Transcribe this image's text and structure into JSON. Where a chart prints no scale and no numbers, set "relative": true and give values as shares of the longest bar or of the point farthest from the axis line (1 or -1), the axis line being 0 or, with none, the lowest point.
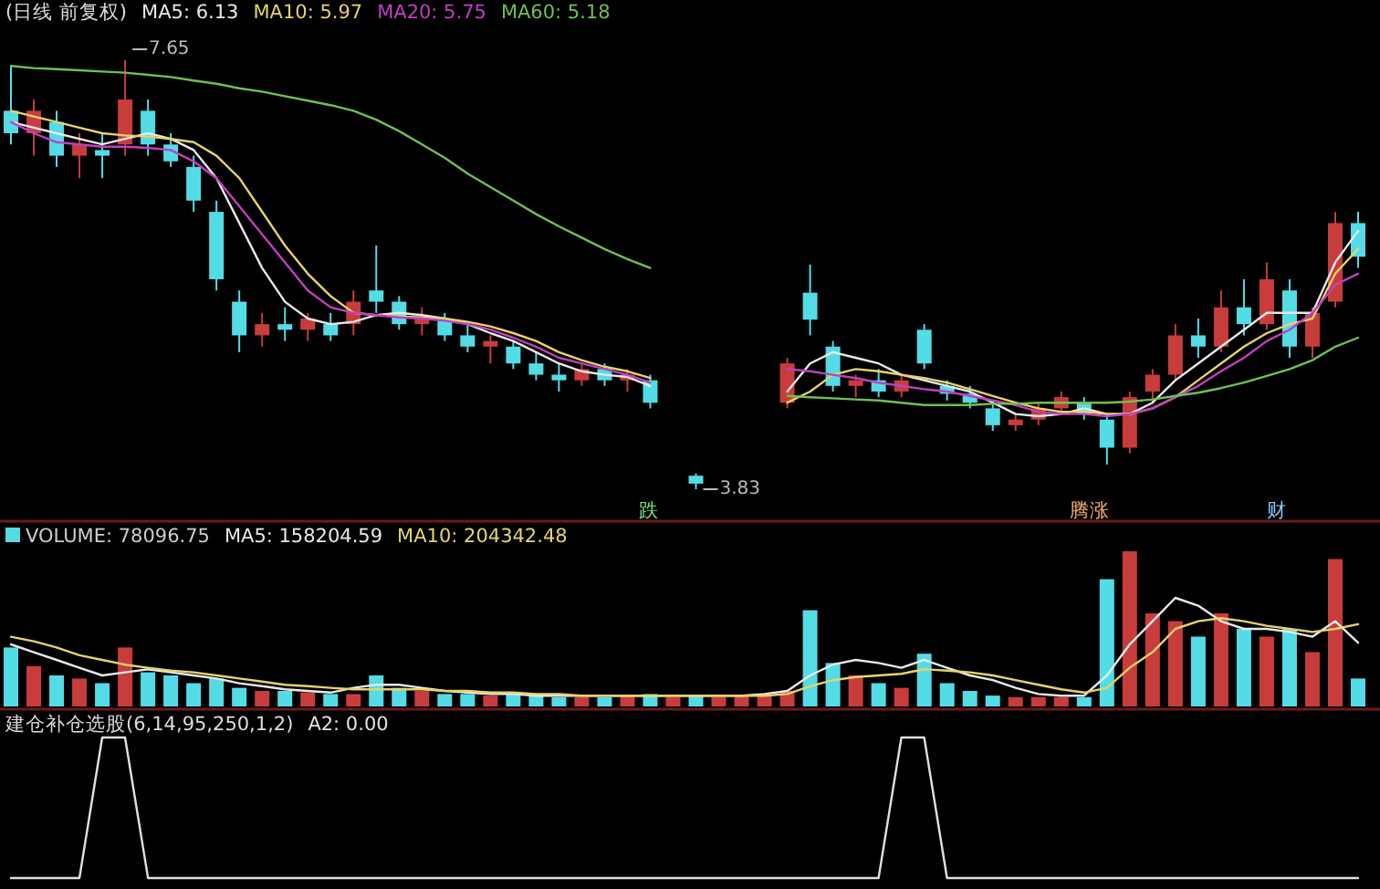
{
  "chart_data": [
    {
      "type": "candlestick",
      "title": "(日线 前复权)",
      "legend": "top left",
      "categories": [
        null,
        null,
        null,
        null,
        null,
        null,
        null,
        null,
        null,
        null,
        null,
        null,
        null,
        null,
        null,
        null,
        null,
        null,
        null,
        null,
        null,
        null,
        null,
        null,
        null,
        null,
        null,
        null,
        null,
        null,
        null,
        null,
        null,
        null,
        null,
        null,
        null,
        null,
        null,
        null,
        null,
        null,
        null,
        null,
        null,
        null,
        null,
        null,
        null,
        null,
        null,
        null,
        null,
        null,
        null,
        null,
        null,
        null,
        null,
        null
      ],
      "ohlc": [
        [
          7.2,
          7.6,
          6.9,
          7.0
        ],
        [
          7.0,
          7.3,
          6.8,
          7.2
        ],
        [
          7.1,
          7.2,
          6.7,
          6.8
        ],
        [
          6.8,
          7.0,
          6.6,
          6.9
        ],
        [
          6.85,
          7.0,
          6.6,
          6.8
        ],
        [
          6.9,
          7.65,
          6.8,
          7.3
        ],
        [
          7.2,
          7.3,
          6.8,
          6.9
        ],
        [
          6.9,
          7.0,
          6.7,
          6.75
        ],
        [
          6.7,
          6.8,
          6.3,
          6.4
        ],
        [
          6.3,
          6.4,
          5.6,
          5.7
        ],
        [
          5.5,
          5.6,
          5.05,
          5.2
        ],
        [
          5.2,
          5.4,
          5.1,
          5.3
        ],
        [
          5.3,
          5.45,
          5.15,
          5.25
        ],
        [
          5.25,
          5.4,
          5.15,
          5.35
        ],
        [
          5.3,
          5.4,
          5.15,
          5.2
        ],
        [
          5.3,
          5.6,
          5.2,
          5.5
        ],
        [
          5.6,
          6.0,
          5.4,
          5.5
        ],
        [
          5.5,
          5.55,
          5.25,
          5.3
        ],
        [
          5.3,
          5.45,
          5.2,
          5.35
        ],
        [
          5.35,
          5.4,
          5.15,
          5.2
        ],
        [
          5.2,
          5.3,
          5.05,
          5.1
        ],
        [
          5.1,
          5.2,
          4.95,
          5.15
        ],
        [
          5.1,
          5.15,
          4.9,
          4.95
        ],
        [
          4.95,
          5.05,
          4.8,
          4.85
        ],
        [
          4.85,
          4.95,
          4.7,
          4.8
        ],
        [
          4.8,
          4.95,
          4.75,
          4.9
        ],
        [
          4.9,
          4.95,
          4.75,
          4.8
        ],
        [
          4.8,
          4.9,
          4.7,
          4.85
        ],
        [
          4.8,
          4.85,
          4.55,
          4.6
        ],
        null,
        [
          3.95,
          3.97,
          3.83,
          3.88
        ],
        null,
        null,
        null,
        [
          4.6,
          5.0,
          4.55,
          4.95
        ],
        [
          5.58,
          5.83,
          5.2,
          5.34
        ],
        [
          5.1,
          5.15,
          4.7,
          4.75
        ],
        [
          4.75,
          4.85,
          4.65,
          4.8
        ],
        [
          4.8,
          4.9,
          4.65,
          4.7
        ],
        [
          4.7,
          4.85,
          4.65,
          4.8
        ],
        [
          5.25,
          5.3,
          4.9,
          4.95
        ],
        [
          4.75,
          4.8,
          4.62,
          4.68
        ],
        [
          4.68,
          4.75,
          4.55,
          4.6
        ],
        [
          4.55,
          4.6,
          4.35,
          4.4
        ],
        [
          4.4,
          4.5,
          4.35,
          4.45
        ],
        [
          4.45,
          4.6,
          4.4,
          4.55
        ],
        [
          4.55,
          4.7,
          4.5,
          4.65
        ],
        [
          4.6,
          4.65,
          4.45,
          4.5
        ],
        [
          4.45,
          4.5,
          4.05,
          4.2
        ],
        [
          4.2,
          4.7,
          4.15,
          4.65
        ],
        [
          4.7,
          4.9,
          4.6,
          4.85
        ],
        [
          4.85,
          5.3,
          4.8,
          5.2
        ],
        [
          5.2,
          5.35,
          5.0,
          5.1
        ],
        [
          5.1,
          5.6,
          5.05,
          5.45
        ],
        [
          5.45,
          5.7,
          5.2,
          5.3
        ],
        [
          5.3,
          5.85,
          5.25,
          5.7
        ],
        [
          5.6,
          5.7,
          5.0,
          5.1
        ],
        [
          5.1,
          5.45,
          5.0,
          5.4
        ],
        [
          5.5,
          6.3,
          5.45,
          6.2
        ],
        [
          6.2,
          6.3,
          5.8,
          5.9
        ]
      ],
      "colors": [
        "#54dce6",
        "#c83c3c",
        "#54dce6",
        "#c83c3c",
        "#54dce6",
        "#c83c3c",
        "#54dce6",
        "#54dce6",
        "#54dce6",
        "#54dce6",
        "#54dce6",
        "#c83c3c",
        "#54dce6",
        "#c83c3c",
        "#54dce6",
        "#c83c3c",
        "#54dce6",
        "#54dce6",
        "#c83c3c",
        "#54dce6",
        "#54dce6",
        "#c83c3c",
        "#54dce6",
        "#54dce6",
        "#54dce6",
        "#c83c3c",
        "#54dce6",
        "#c83c3c",
        "#54dce6",
        null,
        "#54dce6",
        null,
        null,
        null,
        "#c83c3c",
        "#54dce6",
        "#54dce6",
        "#c83c3c",
        "#54dce6",
        "#c83c3c",
        "#54dce6",
        "#54dce6",
        "#54dce6",
        "#54dce6",
        "#c83c3c",
        "#c83c3c",
        "#c83c3c",
        "#54dce6",
        "#54dce6",
        "#c83c3c",
        "#c83c3c",
        "#c83c3c",
        "#54dce6",
        "#c83c3c",
        "#54dce6",
        "#c83c3c",
        "#54dce6",
        "#c83c3c",
        "#c83c3c",
        "#54dce6"
      ],
      "series": [
        {
          "name": "MA5: 6.13",
          "type": "line",
          "color": "#e8e8e8",
          "values": [
            7.1,
            7.05,
            7.0,
            6.95,
            6.9,
            6.95,
            7.0,
            6.95,
            6.85,
            6.6,
            6.2,
            5.8,
            5.5,
            5.35,
            5.3,
            5.32,
            5.38,
            5.4,
            5.38,
            5.35,
            5.3,
            5.22,
            5.15,
            5.05,
            4.95,
            4.88,
            4.85,
            4.83,
            4.75,
            null,
            null,
            null,
            null,
            null,
            4.7,
            4.95,
            5.05,
            5.0,
            4.95,
            4.85,
            4.8,
            4.75,
            4.7,
            4.6,
            4.5,
            4.48,
            4.5,
            4.55,
            4.5,
            4.5,
            4.6,
            4.8,
            4.95,
            5.1,
            5.25,
            5.4,
            5.4,
            5.4,
            5.85,
            6.13
          ]
        },
        {
          "name": "MA10: 5.97",
          "type": "line",
          "color": "#e6d36a",
          "values": [
            7.2,
            7.15,
            7.1,
            7.05,
            7.0,
            6.98,
            6.97,
            6.95,
            6.92,
            6.8,
            6.6,
            6.3,
            6.0,
            5.75,
            5.55,
            5.4,
            5.38,
            5.37,
            5.36,
            5.35,
            5.32,
            5.28,
            5.22,
            5.15,
            5.05,
            4.98,
            4.92,
            4.88,
            4.82,
            null,
            null,
            null,
            null,
            null,
            4.6,
            4.7,
            4.85,
            4.9,
            4.88,
            4.85,
            4.82,
            4.78,
            4.72,
            4.66,
            4.6,
            4.55,
            4.52,
            4.52,
            4.5,
            4.5,
            4.55,
            4.65,
            4.8,
            4.95,
            5.1,
            5.22,
            5.3,
            5.35,
            5.75,
            5.97
          ]
        },
        {
          "name": "MA20: 5.75",
          "type": "line",
          "color": "#c040c0",
          "values": [
            7.1,
            7.0,
            6.92,
            6.9,
            6.88,
            6.88,
            6.87,
            6.85,
            6.75,
            6.6,
            6.35,
            6.1,
            5.85,
            5.6,
            5.45,
            5.4,
            5.38,
            5.36,
            5.35,
            5.33,
            5.3,
            5.25,
            5.18,
            5.1,
            5.0,
            4.95,
            4.9,
            4.85,
            4.78,
            null,
            null,
            null,
            null,
            null,
            4.9,
            4.88,
            4.85,
            4.82,
            4.78,
            4.75,
            4.72,
            4.7,
            4.66,
            4.62,
            4.58,
            4.52,
            4.5,
            4.5,
            4.48,
            4.5,
            4.55,
            4.65,
            4.75,
            4.88,
            5.0,
            5.15,
            5.25,
            5.4,
            5.65,
            5.75
          ]
        },
        {
          "name": "MA60: 5.18",
          "type": "line",
          "color": "#70c050",
          "values": [
            7.6,
            7.58,
            7.57,
            7.56,
            7.55,
            7.54,
            7.52,
            7.5,
            7.47,
            7.44,
            7.4,
            7.37,
            7.33,
            7.29,
            7.25,
            7.2,
            7.12,
            7.02,
            6.9,
            6.78,
            6.64,
            6.52,
            6.4,
            6.28,
            6.17,
            6.07,
            5.97,
            5.88,
            5.8,
            null,
            null,
            null,
            null,
            null,
            4.66,
            4.65,
            4.64,
            4.63,
            4.62,
            4.6,
            4.58,
            4.58,
            4.58,
            4.59,
            4.59,
            4.6,
            4.6,
            4.6,
            4.6,
            4.61,
            4.63,
            4.66,
            4.69,
            4.73,
            4.78,
            4.84,
            4.9,
            4.98,
            5.1,
            5.18
          ]
        }
      ],
      "annotations": [
        "7.65",
        "3.83",
        "跌",
        "腾涨",
        "财"
      ]
    },
    {
      "type": "bar",
      "relative": true,
      "legend": "top left",
      "categories": [
        null,
        null,
        null,
        null,
        null,
        null,
        null,
        null,
        null,
        null,
        null,
        null,
        null,
        null,
        null,
        null,
        null,
        null,
        null,
        null,
        null,
        null,
        null,
        null,
        null,
        null,
        null,
        null,
        null,
        null,
        null,
        null,
        null,
        null,
        null,
        null,
        null,
        null,
        null,
        null,
        null,
        null,
        null,
        null,
        null,
        null,
        null,
        null,
        null,
        null,
        null,
        null,
        null,
        null,
        null,
        null,
        null,
        null,
        null,
        null
      ],
      "series": [
        {
          "name": "VOLUME: 78096.75",
          "colors": [
            "#54dce6",
            "#c83c3c",
            "#54dce6",
            "#c83c3c",
            "#54dce6",
            "#c83c3c",
            "#54dce6",
            "#54dce6",
            "#54dce6",
            "#54dce6",
            "#54dce6",
            "#c83c3c",
            "#54dce6",
            "#c83c3c",
            "#54dce6",
            "#c83c3c",
            "#54dce6",
            "#54dce6",
            "#c83c3c",
            "#54dce6",
            "#54dce6",
            "#c83c3c",
            "#54dce6",
            "#54dce6",
            "#54dce6",
            "#c83c3c",
            "#54dce6",
            "#c83c3c",
            "#54dce6",
            "#c83c3c",
            "#54dce6",
            "#c83c3c",
            "#c83c3c",
            "#c83c3c",
            "#c83c3c",
            "#54dce6",
            "#54dce6",
            "#c83c3c",
            "#54dce6",
            "#c83c3c",
            "#54dce6",
            "#54dce6",
            "#54dce6",
            "#54dce6",
            "#c83c3c",
            "#c83c3c",
            "#c83c3c",
            "#54dce6",
            "#54dce6",
            "#c83c3c",
            "#c83c3c",
            "#c83c3c",
            "#54dce6",
            "#c83c3c",
            "#54dce6",
            "#c83c3c",
            "#54dce6",
            "#c83c3c",
            "#c83c3c",
            "#54dce6"
          ],
          "values": [
            0.38,
            0.26,
            0.2,
            0.18,
            0.15,
            0.38,
            0.22,
            0.2,
            0.15,
            0.18,
            0.12,
            0.1,
            0.1,
            0.09,
            0.08,
            0.08,
            0.2,
            0.12,
            0.1,
            0.08,
            0.08,
            0.07,
            0.08,
            0.07,
            0.06,
            0.06,
            0.06,
            0.07,
            0.08,
            0.06,
            0.07,
            0.06,
            0.07,
            0.08,
            0.1,
            0.62,
            0.28,
            0.2,
            0.15,
            0.12,
            0.34,
            0.15,
            0.1,
            0.07,
            0.06,
            0.06,
            0.06,
            0.06,
            0.82,
            1.0,
            0.6,
            0.55,
            0.45,
            0.6,
            0.5,
            0.45,
            0.5,
            0.35,
            0.95,
            0.18
          ]
        },
        {
          "name": "MA5: 158204.59",
          "type": "line",
          "color": "#e8e8e8",
          "values": [
            0.4,
            0.35,
            0.3,
            0.25,
            0.2,
            0.22,
            0.24,
            0.22,
            0.2,
            0.18,
            0.15,
            0.13,
            0.11,
            0.1,
            0.09,
            0.12,
            0.14,
            0.14,
            0.12,
            0.1,
            0.09,
            0.08,
            0.08,
            0.07,
            0.07,
            0.07,
            0.07,
            0.07,
            0.07,
            0.07,
            0.07,
            0.07,
            0.07,
            0.08,
            0.1,
            0.2,
            0.27,
            0.3,
            0.28,
            0.25,
            0.3,
            0.25,
            0.2,
            0.17,
            0.12,
            0.08,
            0.07,
            0.07,
            0.2,
            0.4,
            0.55,
            0.7,
            0.65,
            0.55,
            0.5,
            0.5,
            0.48,
            0.45,
            0.55,
            0.41
          ]
        },
        {
          "name": "MA10: 204342.48",
          "type": "line",
          "color": "#e6d36a",
          "values": [
            0.45,
            0.42,
            0.38,
            0.33,
            0.3,
            0.27,
            0.25,
            0.23,
            0.22,
            0.2,
            0.18,
            0.16,
            0.14,
            0.13,
            0.12,
            0.11,
            0.11,
            0.11,
            0.11,
            0.1,
            0.1,
            0.09,
            0.09,
            0.08,
            0.08,
            0.07,
            0.07,
            0.07,
            0.07,
            0.07,
            0.07,
            0.07,
            0.07,
            0.07,
            0.08,
            0.13,
            0.17,
            0.19,
            0.2,
            0.21,
            0.24,
            0.23,
            0.22,
            0.2,
            0.17,
            0.14,
            0.11,
            0.09,
            0.12,
            0.25,
            0.35,
            0.5,
            0.55,
            0.57,
            0.55,
            0.52,
            0.5,
            0.48,
            0.5,
            0.53
          ]
        }
      ]
    },
    {
      "type": "line",
      "relative": true,
      "legend": "top left",
      "title": "建仓补仓选股(6,14,95,250,1,2)",
      "categories": [
        null,
        null,
        null,
        null,
        null,
        null,
        null,
        null,
        null,
        null,
        null,
        null,
        null,
        null,
        null,
        null,
        null,
        null,
        null,
        null,
        null,
        null,
        null,
        null,
        null,
        null,
        null,
        null,
        null,
        null,
        null,
        null,
        null,
        null,
        null,
        null,
        null,
        null,
        null,
        null,
        null,
        null,
        null,
        null,
        null,
        null,
        null,
        null,
        null,
        null,
        null,
        null,
        null,
        null,
        null,
        null,
        null,
        null,
        null,
        null
      ],
      "series": [
        {
          "name": "A2: 0.00",
          "color": "#e0e0e0",
          "values": [
            0,
            0,
            0,
            0,
            1,
            1,
            0,
            0,
            0,
            0,
            0,
            0,
            0,
            0,
            0,
            0,
            0,
            0,
            0,
            0,
            0,
            0,
            0,
            0,
            0,
            0,
            0,
            0,
            0,
            0,
            0,
            0,
            0,
            0,
            0,
            0,
            0,
            0,
            0,
            1,
            1,
            0,
            0,
            0,
            0,
            0,
            0,
            0,
            0,
            0,
            0,
            0,
            0,
            0,
            0,
            0,
            0,
            0,
            0,
            0
          ]
        }
      ]
    }
  ]
}
